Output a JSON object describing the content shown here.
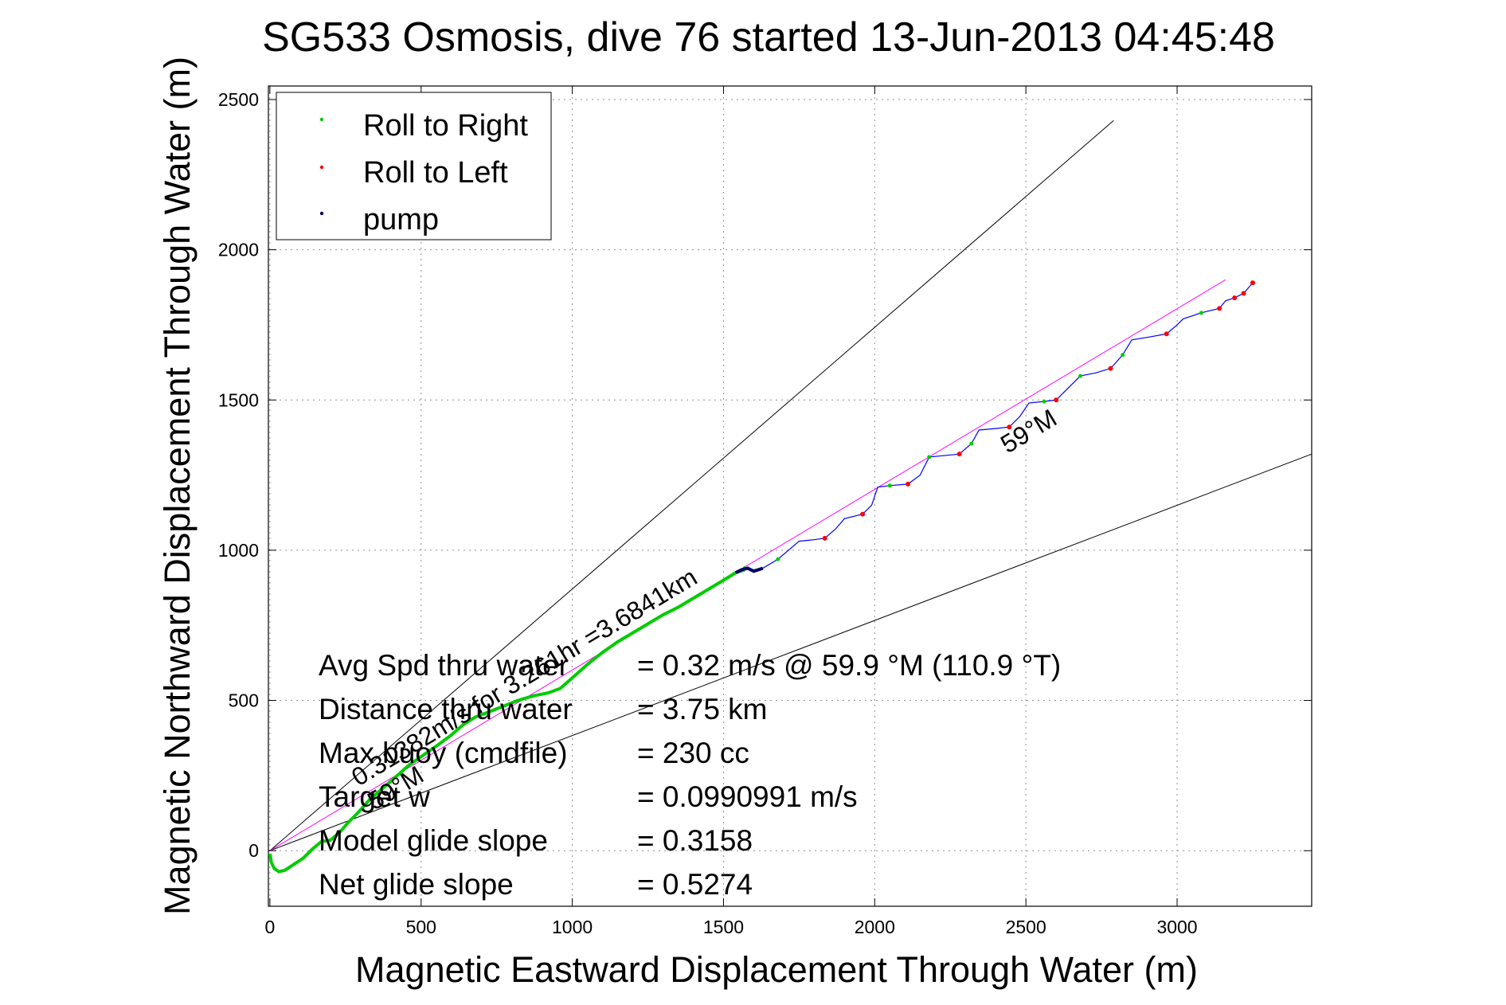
{
  "chart_data": {
    "type": "line",
    "title": "SG533 Osmosis, dive 76 started 13-Jun-2013 04:45:48",
    "xlabel": "Magnetic Eastward Displacement Through Water (m)",
    "ylabel": "Magnetic Northward Displacement Through Water (m)",
    "xlim": [
      -5,
      3445
    ],
    "ylim": [
      -185,
      2545
    ],
    "xticks": [
      0,
      500,
      1000,
      1500,
      2000,
      2500,
      3000
    ],
    "yticks": [
      0,
      500,
      1000,
      1500,
      2000,
      2500
    ],
    "grid": true,
    "legend": {
      "placement": "top-left",
      "entries": [
        {
          "label": "Roll to Right",
          "color": "#00cc00"
        },
        {
          "label": "Roll to Left",
          "color": "#ff0000"
        },
        {
          "label": "pump",
          "color": "#000066"
        }
      ]
    },
    "colors": {
      "track": "#0000ff",
      "green_track": "#00cc00",
      "roll_left": "#ff0000",
      "pump": "#000066",
      "heading_line": "#ff00ff",
      "envelope": "#000000"
    },
    "reference_lines": [
      {
        "name": "envelope-upper",
        "x": [
          0,
          2790
        ],
        "y": [
          0,
          2430
        ]
      },
      {
        "name": "envelope-lower",
        "x": [
          0,
          3445
        ],
        "y": [
          0,
          1320
        ]
      },
      {
        "name": "heading-59M",
        "x": [
          0,
          3160
        ],
        "y": [
          0,
          1900
        ]
      }
    ],
    "series": [
      {
        "name": "Roll to Right",
        "x": [
          0,
          5,
          15,
          30,
          50,
          80,
          110,
          140,
          170,
          200,
          230,
          260,
          290,
          330,
          370,
          410,
          460,
          510,
          560,
          600,
          640,
          680,
          720,
          770,
          820,
          870,
          920,
          960,
          1000,
          1050,
          1100,
          1150,
          1200,
          1250,
          1300,
          1350,
          1400,
          1450,
          1500,
          1540,
          1570
        ],
        "y": [
          -10,
          -40,
          -60,
          -70,
          -65,
          -45,
          -25,
          5,
          30,
          35,
          60,
          95,
          125,
          170,
          205,
          240,
          285,
          320,
          355,
          385,
          420,
          445,
          460,
          480,
          500,
          515,
          525,
          540,
          575,
          620,
          660,
          695,
          725,
          755,
          785,
          810,
          840,
          870,
          900,
          925,
          935
        ]
      },
      {
        "name": "Roll to Left",
        "x": [
          1835,
          1960,
          2110,
          2280,
          2445,
          2600,
          2780,
          2965,
          3140,
          3190,
          3220,
          3250
        ],
        "y": [
          1040,
          1120,
          1220,
          1320,
          1410,
          1500,
          1605,
          1720,
          1805,
          1840,
          1855,
          1890
        ]
      },
      {
        "name": "pump",
        "x": [
          1540,
          1560,
          1580,
          1600,
          1615,
          1630
        ],
        "y": [
          925,
          935,
          940,
          930,
          935,
          940
        ]
      },
      {
        "name": "track",
        "x": [
          1570,
          1600,
          1630,
          1680,
          1750,
          1800,
          1835,
          1870,
          1900,
          1960,
          1990,
          2010,
          2050,
          2110,
          2150,
          2180,
          2230,
          2280,
          2320,
          2345,
          2400,
          2445,
          2480,
          2510,
          2560,
          2600,
          2640,
          2680,
          2730,
          2780,
          2820,
          2850,
          2910,
          2965,
          3000,
          3020,
          3080,
          3140,
          3160,
          3190,
          3220,
          3250
        ],
        "y": [
          940,
          935,
          940,
          970,
          1030,
          1035,
          1040,
          1070,
          1105,
          1120,
          1150,
          1210,
          1215,
          1220,
          1250,
          1310,
          1315,
          1320,
          1355,
          1400,
          1405,
          1410,
          1445,
          1490,
          1495,
          1500,
          1540,
          1580,
          1590,
          1605,
          1650,
          1700,
          1710,
          1720,
          1750,
          1770,
          1790,
          1805,
          1830,
          1840,
          1855,
          1890
        ]
      }
    ],
    "annotations": {
      "heading_label": "59°M",
      "heading_label_start": "59°M",
      "speed_label": "0.31382m/s for 3.261hr =3.6841km"
    },
    "stats": [
      {
        "label": "Avg Spd thru water",
        "value": "=  0.32 m/s @  59.9 °M (110.9 °T)"
      },
      {
        "label": "Distance thru water",
        "value": "=  3.75 km"
      },
      {
        "label": "Max buoy (cmdfile)",
        "value": "= 230 cc"
      },
      {
        "label": "Target w",
        "value": "= 0.0990991 m/s"
      },
      {
        "label": "Model glide slope",
        "value": "= 0.3158"
      },
      {
        "label": "Net glide slope",
        "value": "= 0.5274"
      }
    ]
  }
}
